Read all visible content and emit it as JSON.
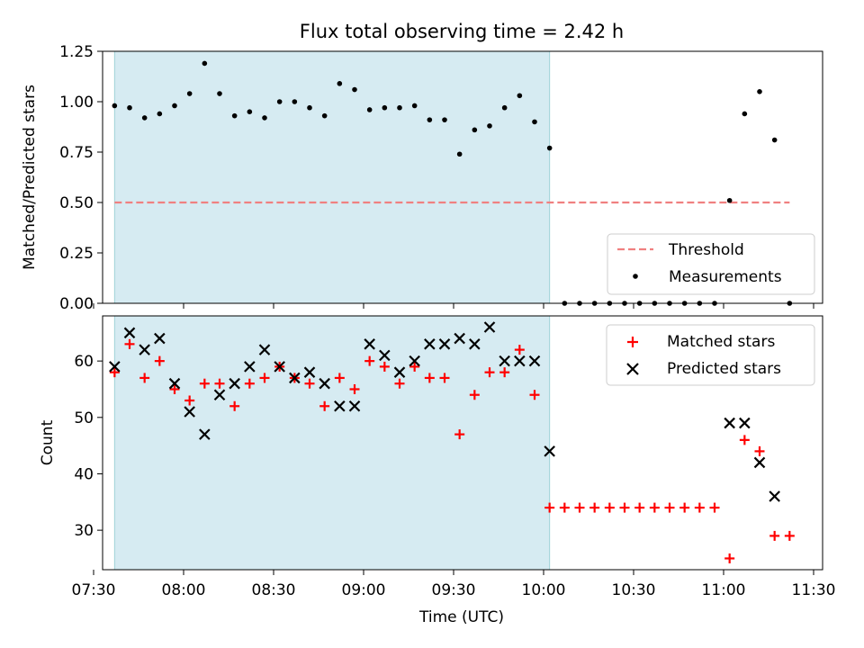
{
  "chart_data": [
    {
      "type": "scatter",
      "title": "Flux total observing time = 2.42 h",
      "ylabel": "Matched/Predicted stars",
      "xlabel": "",
      "ylim": [
        0,
        1.25
      ],
      "yticks": [
        "0.00",
        "0.25",
        "0.50",
        "0.75",
        "1.00",
        "1.25"
      ],
      "threshold": 0.5,
      "threshold_color": "#f08080",
      "highlight_span": [
        "07:37",
        "10:02"
      ],
      "highlight_color": "#add8e6",
      "legend": {
        "placement": "lower-right",
        "entries": [
          "Threshold",
          "Measurements"
        ]
      },
      "series": [
        {
          "name": "Measurements",
          "color": "#000000",
          "marker": "dot",
          "points": [
            [
              "07:37",
              0.98
            ],
            [
              "07:42",
              0.97
            ],
            [
              "07:47",
              0.92
            ],
            [
              "07:52",
              0.94
            ],
            [
              "07:57",
              0.98
            ],
            [
              "08:02",
              1.04
            ],
            [
              "08:07",
              1.19
            ],
            [
              "08:12",
              1.04
            ],
            [
              "08:17",
              0.93
            ],
            [
              "08:22",
              0.95
            ],
            [
              "08:27",
              0.92
            ],
            [
              "08:32",
              1.0
            ],
            [
              "08:37",
              1.0
            ],
            [
              "08:42",
              0.97
            ],
            [
              "08:47",
              0.93
            ],
            [
              "08:52",
              1.09
            ],
            [
              "08:57",
              1.06
            ],
            [
              "09:02",
              0.96
            ],
            [
              "09:07",
              0.97
            ],
            [
              "09:12",
              0.97
            ],
            [
              "09:17",
              0.98
            ],
            [
              "09:22",
              0.91
            ],
            [
              "09:27",
              0.91
            ],
            [
              "09:32",
              0.74
            ],
            [
              "09:37",
              0.86
            ],
            [
              "09:42",
              0.88
            ],
            [
              "09:47",
              0.97
            ],
            [
              "09:52",
              1.03
            ],
            [
              "09:57",
              0.9
            ],
            [
              "10:02",
              0.77
            ],
            [
              "10:07",
              0.0
            ],
            [
              "10:12",
              0.0
            ],
            [
              "10:17",
              0.0
            ],
            [
              "10:22",
              0.0
            ],
            [
              "10:27",
              0.0
            ],
            [
              "10:32",
              0.0
            ],
            [
              "10:37",
              0.0
            ],
            [
              "10:42",
              0.0
            ],
            [
              "10:47",
              0.0
            ],
            [
              "10:52",
              0.0
            ],
            [
              "10:57",
              0.0
            ],
            [
              "11:02",
              0.51
            ],
            [
              "11:07",
              0.94
            ],
            [
              "11:12",
              1.05
            ],
            [
              "11:17",
              0.81
            ],
            [
              "11:22",
              0.0
            ]
          ]
        }
      ]
    },
    {
      "type": "scatter",
      "title": "",
      "xlabel": "Time (UTC)",
      "ylabel": "Count",
      "xlim": [
        "07:33",
        "11:33"
      ],
      "xticks": [
        "07:30",
        "08:00",
        "08:30",
        "09:00",
        "09:30",
        "10:00",
        "10:30",
        "11:00",
        "11:30"
      ],
      "ylim": [
        23,
        68
      ],
      "yticks": [
        30,
        40,
        50,
        60
      ],
      "highlight_span": [
        "07:37",
        "10:02"
      ],
      "legend": {
        "placement": "upper-right",
        "entries": [
          "Matched stars",
          "Predicted stars"
        ]
      },
      "series": [
        {
          "name": "Matched stars",
          "color": "#ff0000",
          "marker": "plus",
          "points": [
            [
              "07:37",
              58
            ],
            [
              "07:42",
              63
            ],
            [
              "07:47",
              57
            ],
            [
              "07:52",
              60
            ],
            [
              "07:57",
              55
            ],
            [
              "08:02",
              53
            ],
            [
              "08:07",
              56
            ],
            [
              "08:12",
              56
            ],
            [
              "08:17",
              52
            ],
            [
              "08:22",
              56
            ],
            [
              "08:27",
              57
            ],
            [
              "08:32",
              59
            ],
            [
              "08:37",
              57
            ],
            [
              "08:42",
              56
            ],
            [
              "08:47",
              52
            ],
            [
              "08:52",
              57
            ],
            [
              "08:57",
              55
            ],
            [
              "09:02",
              60
            ],
            [
              "09:07",
              59
            ],
            [
              "09:12",
              56
            ],
            [
              "09:17",
              59
            ],
            [
              "09:22",
              57
            ],
            [
              "09:27",
              57
            ],
            [
              "09:32",
              47
            ],
            [
              "09:37",
              54
            ],
            [
              "09:42",
              58
            ],
            [
              "09:47",
              58
            ],
            [
              "09:52",
              62
            ],
            [
              "09:57",
              54
            ],
            [
              "10:02",
              34
            ],
            [
              "10:07",
              34
            ],
            [
              "10:12",
              34
            ],
            [
              "10:17",
              34
            ],
            [
              "10:22",
              34
            ],
            [
              "10:27",
              34
            ],
            [
              "10:32",
              34
            ],
            [
              "10:37",
              34
            ],
            [
              "10:42",
              34
            ],
            [
              "10:47",
              34
            ],
            [
              "10:52",
              34
            ],
            [
              "10:57",
              34
            ],
            [
              "11:02",
              25
            ],
            [
              "11:07",
              46
            ],
            [
              "11:12",
              44
            ],
            [
              "11:17",
              29
            ],
            [
              "11:22",
              29
            ]
          ]
        },
        {
          "name": "Predicted stars",
          "color": "#000000",
          "marker": "x",
          "points": [
            [
              "07:37",
              59
            ],
            [
              "07:42",
              65
            ],
            [
              "07:47",
              62
            ],
            [
              "07:52",
              64
            ],
            [
              "07:57",
              56
            ],
            [
              "08:02",
              51
            ],
            [
              "08:07",
              47
            ],
            [
              "08:12",
              54
            ],
            [
              "08:17",
              56
            ],
            [
              "08:22",
              59
            ],
            [
              "08:27",
              62
            ],
            [
              "08:32",
              59
            ],
            [
              "08:37",
              57
            ],
            [
              "08:42",
              58
            ],
            [
              "08:47",
              56
            ],
            [
              "08:52",
              52
            ],
            [
              "08:57",
              52
            ],
            [
              "09:02",
              63
            ],
            [
              "09:07",
              61
            ],
            [
              "09:12",
              58
            ],
            [
              "09:17",
              60
            ],
            [
              "09:22",
              63
            ],
            [
              "09:27",
              63
            ],
            [
              "09:32",
              64
            ],
            [
              "09:37",
              63
            ],
            [
              "09:42",
              66
            ],
            [
              "09:47",
              60
            ],
            [
              "09:52",
              60
            ],
            [
              "09:57",
              60
            ],
            [
              "10:02",
              44
            ],
            [
              "11:02",
              49
            ],
            [
              "11:07",
              49
            ],
            [
              "11:12",
              42
            ],
            [
              "11:17",
              36
            ]
          ]
        }
      ]
    }
  ]
}
